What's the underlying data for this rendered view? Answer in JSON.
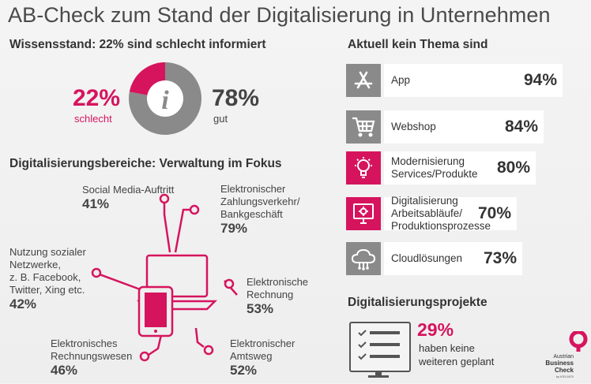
{
  "title": "AB-Check zum Stand der Digitalisierung in Unternehmen",
  "wissensstand": {
    "heading": "Wissensstand: 22% sind schlecht informiert",
    "bad_value": "22%",
    "bad_label": "schlecht",
    "good_value": "78%",
    "good_label": "gut",
    "info_glyph": "i"
  },
  "bereiche": {
    "heading": "Digitalisierungsbereiche: Verwaltung im Fokus",
    "items": [
      {
        "l1": "Social Media-Auftritt",
        "value": "41%"
      },
      {
        "l1": "Elektronischer",
        "l2": "Zahlungsverkehr/",
        "l3": "Bankgeschäft",
        "value": "79%"
      },
      {
        "l1": "Nutzung sozialer",
        "l2": "Netzwerke,",
        "l3": "z. B. Facebook,",
        "l4": "Twitter, Xing etc.",
        "value": "42%"
      },
      {
        "l1": "Elektronische",
        "l2": "Rechnung",
        "value": "53%"
      },
      {
        "l1": "Elektronisches",
        "l2": "Rechnungswesen",
        "value": "46%"
      },
      {
        "l1": "Elektronischer",
        "l2": "Amtsweg",
        "value": "52%"
      }
    ]
  },
  "kein_thema": {
    "heading": "Aktuell kein Thema sind",
    "items": [
      {
        "l1": "App",
        "value": "94%",
        "icon": "app-store-icon",
        "accent": "gray"
      },
      {
        "l1": "Webshop",
        "value": "84%",
        "icon": "shopping-cart-icon",
        "accent": "gray"
      },
      {
        "l1": "Modernisierung",
        "l2": "Services/Produkte",
        "value": "80%",
        "icon": "lightbulb-icon",
        "accent": "pink"
      },
      {
        "l1": "Digitalisierung",
        "l2": "Arbeitsabläufe/",
        "l3": "Produktionsprozesse",
        "value": "70%",
        "icon": "gear-monitor-icon",
        "accent": "pink"
      },
      {
        "l1": "Cloudlösungen",
        "value": "73%",
        "icon": "cloud-icon",
        "accent": "gray"
      }
    ]
  },
  "projekte": {
    "heading": "Digitalisierungsprojekte",
    "value": "29%",
    "l1": "haben keine",
    "l2": "weiteren geplant"
  },
  "logo": {
    "l1": "Austrian",
    "l2": "Business",
    "l3": "Check",
    "l4": "by KSV1870"
  },
  "colors": {
    "accent": "#d6145e",
    "gray": "#8a8a8a",
    "text": "#333333"
  },
  "chart_data": [
    {
      "type": "pie",
      "title": "Wissensstand: 22% sind schlecht informiert",
      "categories": [
        "schlecht",
        "gut"
      ],
      "values": [
        22,
        78
      ]
    },
    {
      "type": "bar",
      "title": "Aktuell kein Thema sind",
      "categories": [
        "App",
        "Webshop",
        "Modernisierung Services/Produkte",
        "Digitalisierung Arbeitsabläufe/Produktionsprozesse",
        "Cloudlösungen"
      ],
      "values": [
        94,
        84,
        80,
        70,
        73
      ],
      "ylim": [
        0,
        100
      ]
    },
    {
      "type": "table",
      "title": "Digitalisierungsbereiche: Verwaltung im Fokus",
      "categories": [
        "Social Media-Auftritt",
        "Elektronischer Zahlungsverkehr/Bankgeschäft",
        "Nutzung sozialer Netzwerke, z. B. Facebook, Twitter, Xing etc.",
        "Elektronische Rechnung",
        "Elektronisches Rechnungswesen",
        "Elektronischer Amtsweg"
      ],
      "values": [
        41,
        79,
        42,
        53,
        46,
        52
      ]
    }
  ]
}
